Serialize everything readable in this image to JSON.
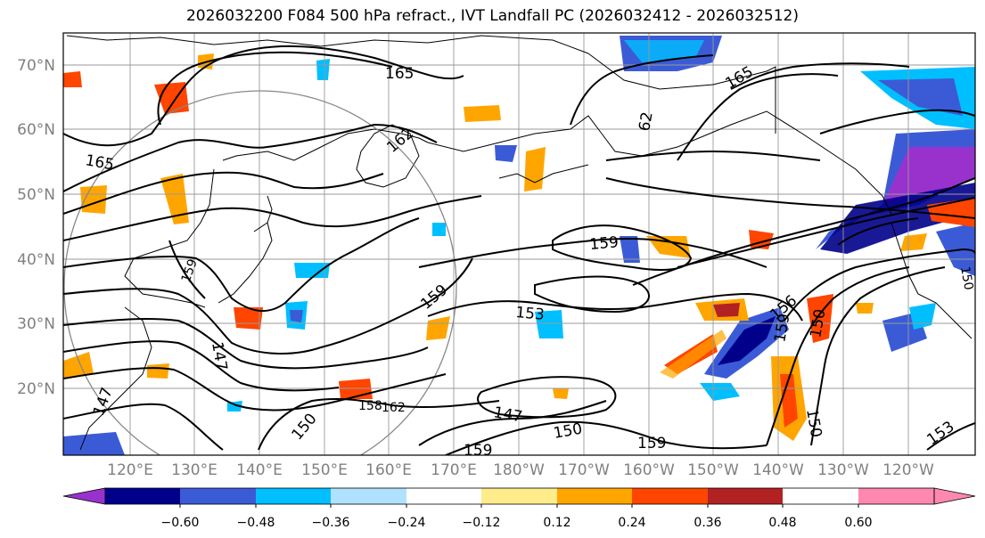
{
  "title": "2026032200 F084 500 hPa refract., IVT Landfall PC (2026032412 - 2026032512)",
  "latitude_labels": [
    "70°N",
    "60°N",
    "50°N",
    "40°N",
    "30°N",
    "20°N"
  ],
  "longitude_labels": [
    "120°E",
    "130°E",
    "140°E",
    "150°E",
    "160°E",
    "170°E",
    "180°W",
    "170°W",
    "160°W",
    "150°W",
    "140°W",
    "130°W",
    "120°W"
  ],
  "contour_labels": [
    "165",
    "165",
    "165",
    "162",
    "62",
    "159",
    "159",
    "159",
    "159",
    "159",
    "156",
    "153",
    "153",
    "150",
    "150",
    "150",
    "150",
    "147",
    "147",
    "147",
    "158",
    "162",
    "159",
    "150"
  ],
  "colorbar": {
    "tick_labels": [
      "−0.60",
      "−0.48",
      "−0.36",
      "−0.24",
      "−0.12",
      "0.12",
      "0.24",
      "0.36",
      "0.48",
      "0.60"
    ],
    "colors": [
      "#9932cc",
      "#00008b",
      "#3b5bd6",
      "#00bfff",
      "#b0e2ff",
      "#ffffff",
      "#ffec8b",
      "#ffa500",
      "#ff4500",
      "#b22222",
      "#ff88b0"
    ]
  },
  "colors": {
    "contour": "#000000",
    "grid": "#999999",
    "coast": "#000000",
    "axis_label": "#808080"
  }
}
